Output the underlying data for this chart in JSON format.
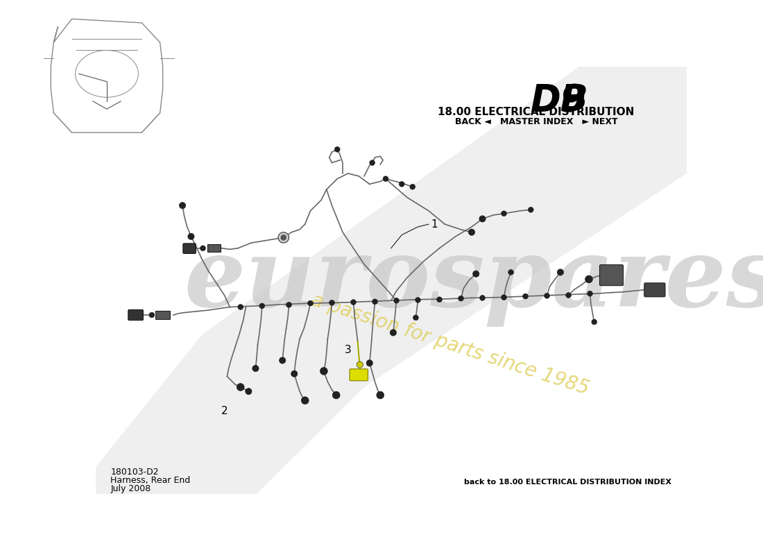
{
  "title_section": "18.00 ELECTRICAL DISTRIBUTION",
  "nav_text": "BACK ◄   MASTER INDEX   ► NEXT",
  "bottom_left_line1": "180103-D2",
  "bottom_left_line2": "Harness, Rear End",
  "bottom_left_line3": "July 2008",
  "bottom_right": "back to 18.00 ELECTRICAL DISTRIBUTION INDEX",
  "bg_color": "#ffffff",
  "wire_color": "#555555",
  "connector_color": "#333333",
  "watermark_color": "#d8d8d8",
  "watermark_text_color": "#e0d060",
  "label_color": "#000000"
}
